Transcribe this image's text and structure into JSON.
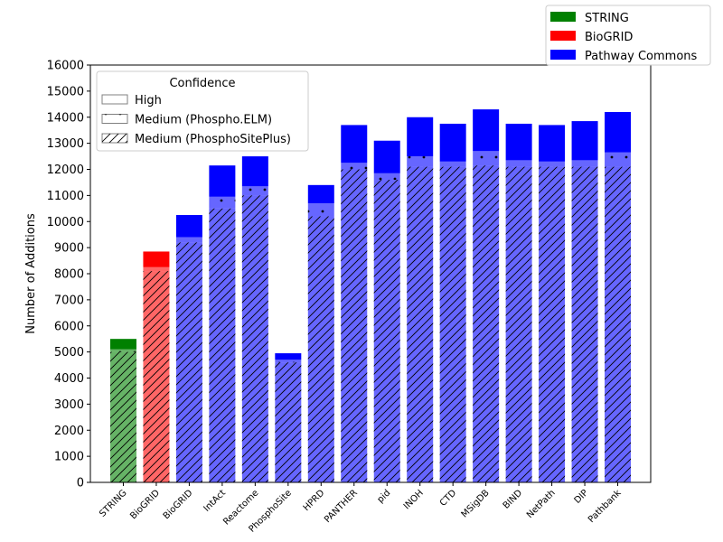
{
  "chart_data": {
    "type": "bar",
    "stacked": true,
    "ylabel": "Number of Additions",
    "xlabel": "",
    "ylim": [
      0,
      16000
    ],
    "ytick_step": 1000,
    "grid": false,
    "categories": [
      "STRING",
      "BioGRID",
      "BioGRID",
      "IntAct",
      "Reactome",
      "PhosphoSite",
      "HPRD",
      "PANTHER",
      "pid",
      "INOH",
      "CTD",
      "MSigDB",
      "BIND",
      "NetPath",
      "DIP",
      "Pathbank"
    ],
    "source_of_bar": [
      "STRING",
      "BioGRID",
      "Pathway Commons",
      "Pathway Commons",
      "Pathway Commons",
      "Pathway Commons",
      "Pathway Commons",
      "Pathway Commons",
      "Pathway Commons",
      "Pathway Commons",
      "Pathway Commons",
      "Pathway Commons",
      "Pathway Commons",
      "Pathway Commons",
      "Pathway Commons",
      "Pathway Commons"
    ],
    "series": [
      {
        "name": "Medium (PhosphoSitePlus)",
        "values": [
          5000,
          8100,
          9200,
          10500,
          11000,
          4600,
          10200,
          12000,
          11600,
          12100,
          12100,
          12150,
          12100,
          12100,
          12100,
          12100
        ]
      },
      {
        "name": "Medium (Phospho.ELM)",
        "values": [
          100,
          150,
          200,
          450,
          350,
          100,
          500,
          250,
          250,
          400,
          200,
          550,
          250,
          200,
          250,
          550
        ]
      },
      {
        "name": "High",
        "values": [
          400,
          600,
          850,
          1200,
          1150,
          250,
          700,
          1450,
          1250,
          1500,
          1450,
          1600,
          1400,
          1400,
          1500,
          1550
        ]
      }
    ],
    "sources": [
      {
        "name": "STRING",
        "color": "#008000"
      },
      {
        "name": "BioGRID",
        "color": "#ff0000"
      },
      {
        "name": "Pathway Commons",
        "color": "#0000ff"
      }
    ],
    "source_legend_placement": "top-right",
    "confidence_legend": {
      "title": "Confidence",
      "entries": [
        "High",
        "Medium (Phospho.ELM)",
        "Medium (PhosphoSitePlus)"
      ],
      "placement": "upper-left"
    }
  }
}
